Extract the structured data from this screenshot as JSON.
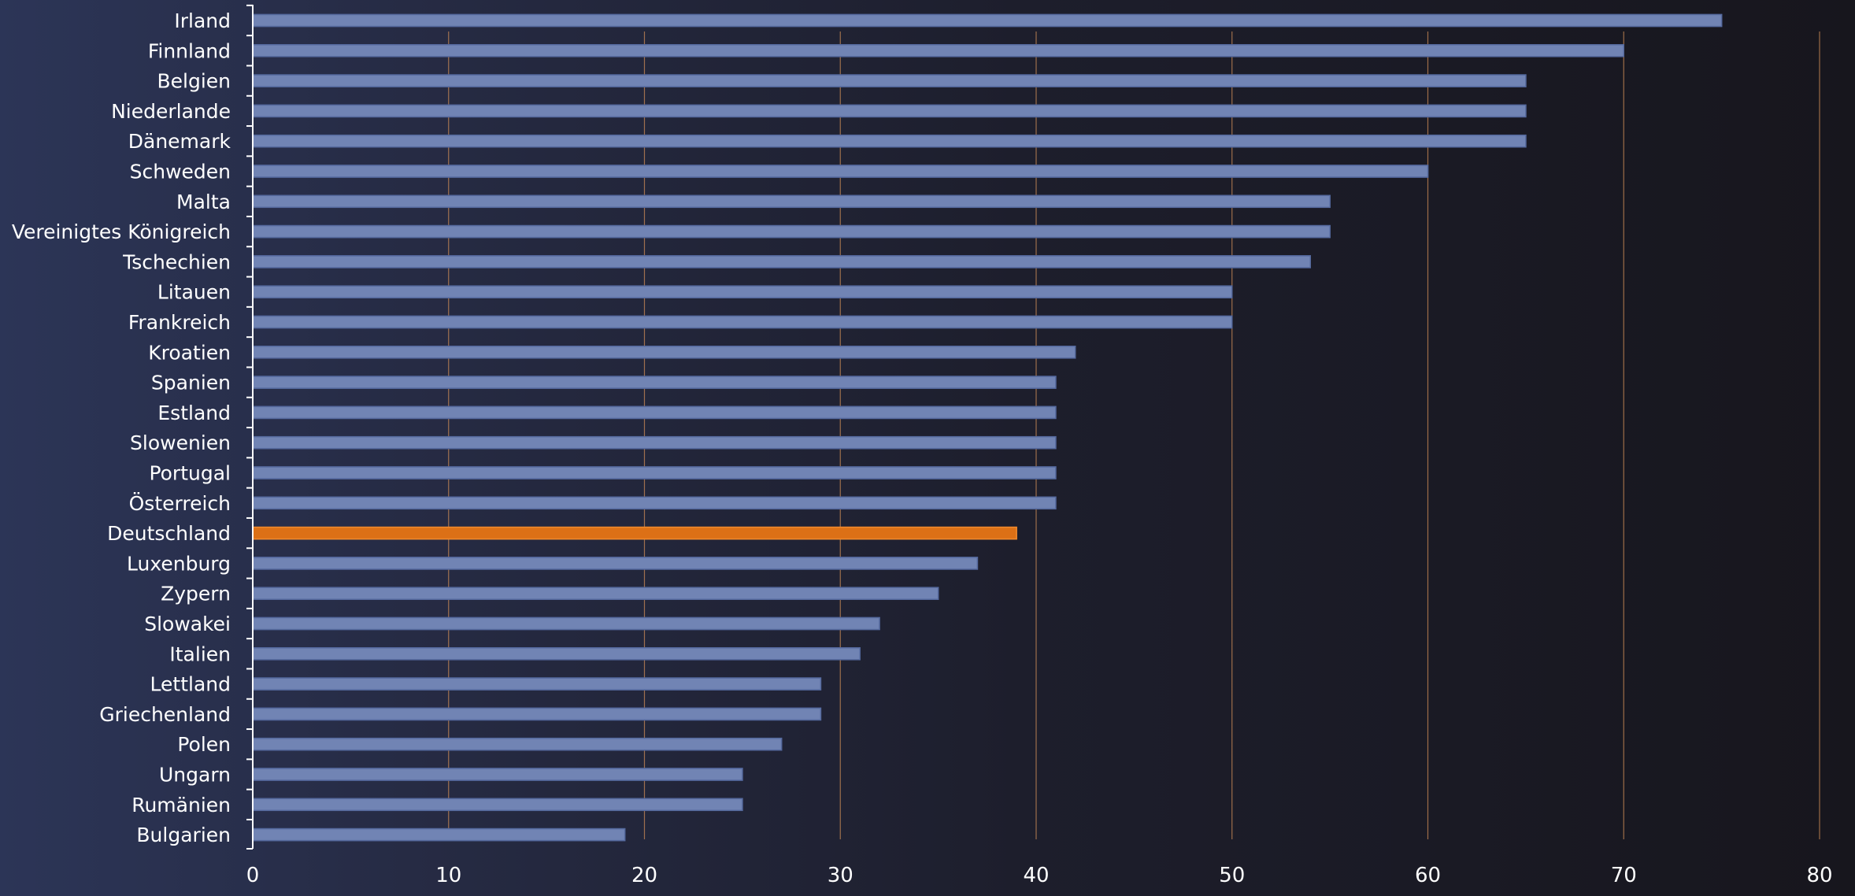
{
  "chart_data": {
    "type": "bar",
    "orientation": "horizontal",
    "categories": [
      "Irland",
      "Finnland",
      "Belgien",
      "Niederlande",
      "Dänemark",
      "Schweden",
      "Malta",
      "Vereinigtes Königreich",
      "Tschechien",
      "Litauen",
      "Frankreich",
      "Kroatien",
      "Spanien",
      "Estland",
      "Slowenien",
      "Portugal",
      "Österreich",
      "Deutschland",
      "Luxenburg",
      "Zypern",
      "Slowakei",
      "Italien",
      "Lettland",
      "Griechenland",
      "Polen",
      "Ungarn",
      "Rumänien",
      "Bulgarien"
    ],
    "values": [
      75,
      70,
      65,
      65,
      65,
      60,
      55,
      55,
      54,
      50,
      50,
      42,
      41,
      41,
      41,
      41,
      41,
      39,
      37,
      35,
      32,
      31,
      29,
      29,
      27,
      25,
      25,
      19
    ],
    "highlight": "Deutschland",
    "xlim": [
      0,
      80
    ],
    "xticks": [
      "0",
      "10",
      "20",
      "30",
      "40",
      "50",
      "60",
      "70",
      "80"
    ],
    "title": "",
    "xlabel": "",
    "ylabel": "",
    "grid": "vertical",
    "colors": {
      "bar": "#7184b4",
      "bar_border": "#566a9e",
      "highlight": "#dc7019",
      "gridline": "#c98a55",
      "axis": "#ffffff",
      "text": "#ffffff"
    }
  }
}
